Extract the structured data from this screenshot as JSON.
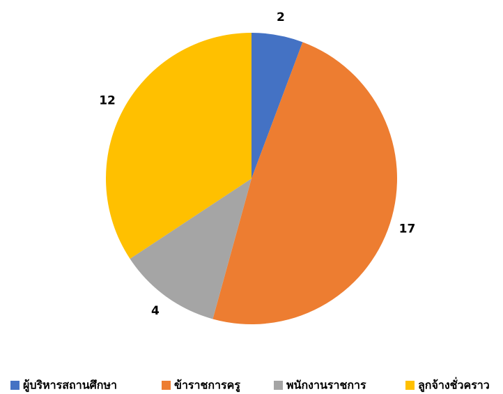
{
  "chart_data": {
    "type": "pie",
    "categories": [
      "ผู้บริหารสถานศึกษา",
      "ข้าราชการครู",
      "พนักงานราชการ",
      "ลูกจ้างชั่วคราว"
    ],
    "values": [
      2,
      17,
      4,
      12
    ],
    "colors": [
      "#4472c4",
      "#ed7d31",
      "#a5a5a5",
      "#ffc000"
    ],
    "legend": "bottom"
  }
}
